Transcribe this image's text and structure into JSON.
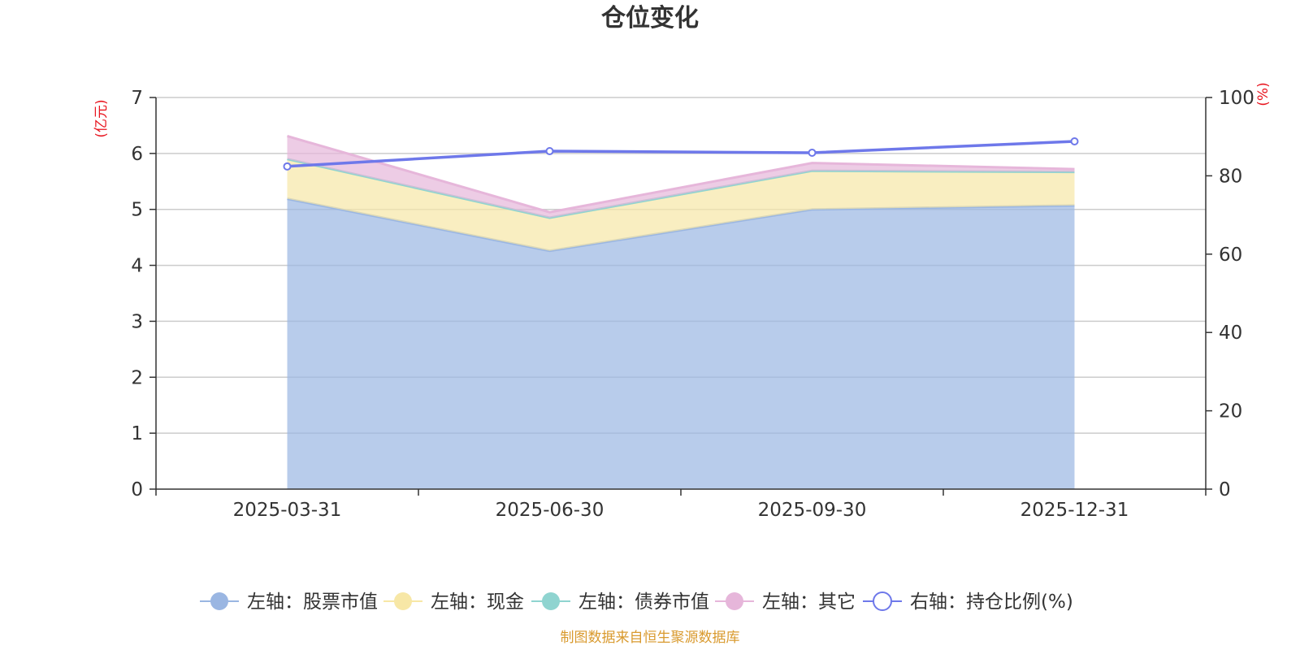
{
  "chart_data": {
    "type": "area",
    "title": "仓位变化",
    "categories": [
      "2025-03-31",
      "2025-06-30",
      "2025-09-30",
      "2025-12-31"
    ],
    "left_axis": {
      "unit": "(亿元)",
      "ylim": [
        0,
        7
      ],
      "ticks": [
        0,
        1,
        2,
        3,
        4,
        5,
        6,
        7
      ]
    },
    "right_axis": {
      "unit": "(%)",
      "ylim": [
        0,
        100
      ],
      "ticks": [
        0,
        20,
        40,
        60,
        80,
        100
      ]
    },
    "stacked_series": [
      {
        "name": "左轴：股票市值",
        "axis": "left",
        "color": "#9ab6e2",
        "values": [
          5.19,
          4.26,
          5.0,
          5.07
        ]
      },
      {
        "name": "左轴：现金",
        "axis": "left",
        "color": "#f7e7a6",
        "values": [
          0.71,
          0.59,
          0.69,
          0.6
        ]
      },
      {
        "name": "左轴：债券市值",
        "axis": "left",
        "color": "#8fd4d0",
        "values": [
          0,
          0,
          0,
          0
        ]
      },
      {
        "name": "左轴：其它",
        "axis": "left",
        "color": "#e6b6da",
        "values": [
          0.41,
          0.1,
          0.14,
          0.05
        ]
      }
    ],
    "line_series": [
      {
        "name": "右轴：持仓比例(%)",
        "axis": "right",
        "color": "#6e78ea",
        "values": [
          82.4,
          86.3,
          85.9,
          88.8
        ]
      }
    ],
    "grid": true,
    "legend_position": "bottom"
  },
  "credit": "制图数据来自恒生聚源数据库"
}
